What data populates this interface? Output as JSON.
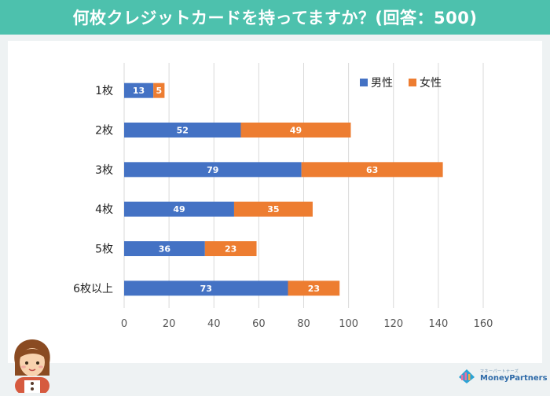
{
  "header": {
    "title": "何枚クレジットカードを持ってますか？(回答：500)"
  },
  "colors": {
    "header": "#4dc1ad",
    "male": "#4472c4",
    "female": "#ed7d31",
    "grid": "#d9d9d9",
    "text": "#222222",
    "tick": "#555555"
  },
  "chart_data": {
    "type": "bar",
    "orientation": "horizontal",
    "stacked": true,
    "title": "何枚クレジットカードを持ってますか？(回答：500)",
    "categories": [
      "1枚",
      "2枚",
      "3枚",
      "4枚",
      "5枚",
      "6枚以上"
    ],
    "series": [
      {
        "name": "男性",
        "values": [
          13,
          52,
          79,
          49,
          36,
          73
        ]
      },
      {
        "name": "女性",
        "values": [
          5,
          49,
          63,
          35,
          23,
          23
        ]
      }
    ],
    "xlim": [
      0,
      160
    ],
    "xticks": [
      0,
      20,
      40,
      60,
      80,
      100,
      120,
      140,
      160
    ],
    "grid": true,
    "legend_position": "top-right"
  },
  "brand": {
    "tagline": "マネーパートナーズ",
    "name": "MoneyPartners"
  }
}
